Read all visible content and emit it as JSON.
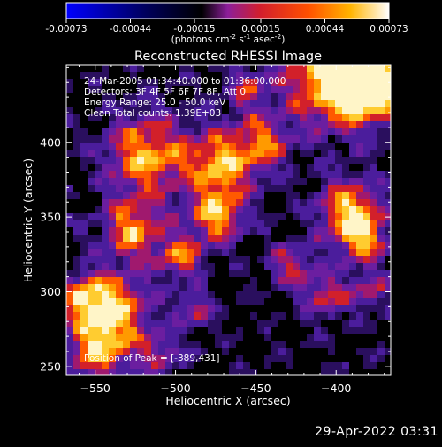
{
  "colorbar": {
    "tick_labels": [
      "-0.00073",
      "-0.00044",
      "-0.00015",
      "0.00015",
      "0.00044",
      "0.00073"
    ],
    "ticks": [
      -0.00073,
      -0.00044,
      -0.00015,
      0.00015,
      0.00044,
      0.00073
    ],
    "range": [
      -0.00073,
      0.00073
    ],
    "unit_base": "(photons cm",
    "unit_exp1": "-2",
    "unit_mid": " s",
    "unit_exp2": "-1",
    "unit_end": " asec",
    "unit_exp3": "-2",
    "unit_close": ")",
    "colors": [
      "#0000ff",
      "#000000",
      "#5a1eb4",
      "#d21e2d",
      "#ff7800",
      "#ffffff"
    ]
  },
  "chart_data": {
    "type": "heatmap",
    "title": "Reconstructed RHESSI Image",
    "xlabel": "Heliocentric X (arcsec)",
    "ylabel": "Heliocentric Y (arcsec)",
    "xlim": [
      -568,
      -366
    ],
    "ylim": [
      244,
      452
    ],
    "xticks": [
      -550,
      -500,
      -450,
      -400
    ],
    "yticks": [
      250,
      300,
      350,
      400
    ],
    "x_tick_labels": [
      "−550",
      "−500",
      "−450",
      "−400"
    ],
    "y_tick_labels": [
      "250",
      "300",
      "350",
      "400"
    ],
    "annotations": {
      "line1": "24-Mar-2005 01:34:40.000 to 01:36:00.000",
      "line2": "Detectors: 3F 4F 5F 6F 7F 8F, Att 0",
      "line3": "Energy Range: 25.0 - 50.0 keV",
      "line4": "Clean    Total counts: 1.39E+03",
      "peak": "Position of Peak = [-389,431]"
    },
    "peak_position": [
      -389,
      431
    ]
  },
  "footer": {
    "date": "29-Apr-2022 03:31"
  }
}
